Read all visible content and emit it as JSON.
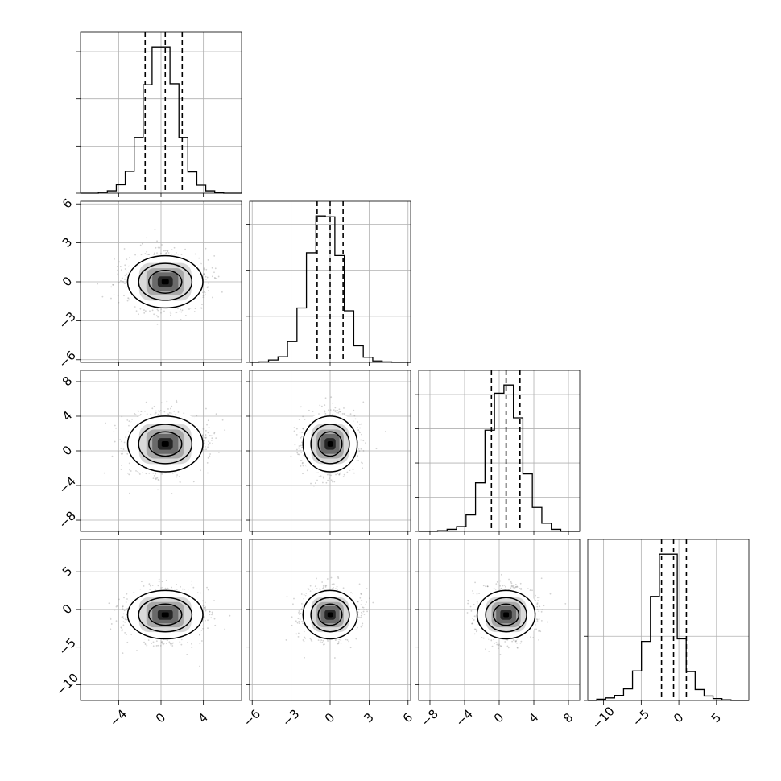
{
  "chart_data": {
    "type": "corner",
    "title": "",
    "dimensions": 4,
    "grid": true,
    "colors": {
      "points": "#7f7f7f",
      "lines": "#000000",
      "grid": "#b0b0b0"
    },
    "params": [
      {
        "range": [
          -7.6,
          7.6
        ],
        "ticks": [
          -4,
          0,
          4
        ],
        "quantiles": [
          -1.5,
          0.4,
          2.0
        ],
        "hist_counts": [
          0,
          0,
          2,
          5,
          18,
          46,
          118,
          230,
          310,
          310,
          232,
          118,
          45,
          17,
          5,
          1,
          0,
          0
        ]
      },
      {
        "range": [
          -6.2,
          6.2
        ],
        "ticks": [
          -6,
          -3,
          0,
          3,
          6
        ],
        "quantiles": [
          -1.0,
          0.0,
          1.0
        ],
        "hist_counts": [
          0,
          1,
          5,
          12,
          45,
          118,
          238,
          318,
          316,
          232,
          112,
          36,
          11,
          3,
          1,
          0,
          0
        ]
      },
      {
        "range": [
          -9.3,
          9.3
        ],
        "ticks": [
          -8,
          -4,
          0,
          4,
          8
        ],
        "quantiles": [
          -0.9,
          0.8,
          2.4
        ],
        "hist_counts": [
          0,
          0,
          1,
          3,
          7,
          24,
          71,
          148,
          202,
          214,
          166,
          84,
          35,
          12,
          3,
          0,
          0
        ]
      },
      {
        "range": [
          -12.1,
          9.3
        ],
        "ticks": [
          -10,
          -5,
          0,
          5
        ],
        "quantiles": [
          -2.3,
          -0.7,
          1.0
        ],
        "hist_counts": [
          0,
          2,
          4,
          8,
          18,
          46,
          92,
          162,
          228,
          228,
          96,
          45,
          17,
          7,
          3,
          1,
          0,
          0
        ]
      }
    ],
    "panels": [
      {
        "row": 1,
        "col": 0,
        "mean": [
          0.4,
          0.0
        ],
        "sigma": [
          1.7,
          1.0
        ]
      },
      {
        "row": 2,
        "col": 0,
        "mean": [
          0.4,
          0.8
        ],
        "sigma": [
          1.7,
          1.6
        ]
      },
      {
        "row": 2,
        "col": 1,
        "mean": [
          0.0,
          0.8
        ],
        "sigma": [
          1.0,
          1.6
        ]
      },
      {
        "row": 3,
        "col": 0,
        "mean": [
          0.4,
          -0.7
        ],
        "sigma": [
          1.7,
          1.6
        ]
      },
      {
        "row": 3,
        "col": 1,
        "mean": [
          0.0,
          -0.7
        ],
        "sigma": [
          1.0,
          1.6
        ]
      },
      {
        "row": 3,
        "col": 2,
        "mean": [
          0.8,
          -0.7
        ],
        "sigma": [
          1.6,
          1.6
        ]
      }
    ]
  }
}
